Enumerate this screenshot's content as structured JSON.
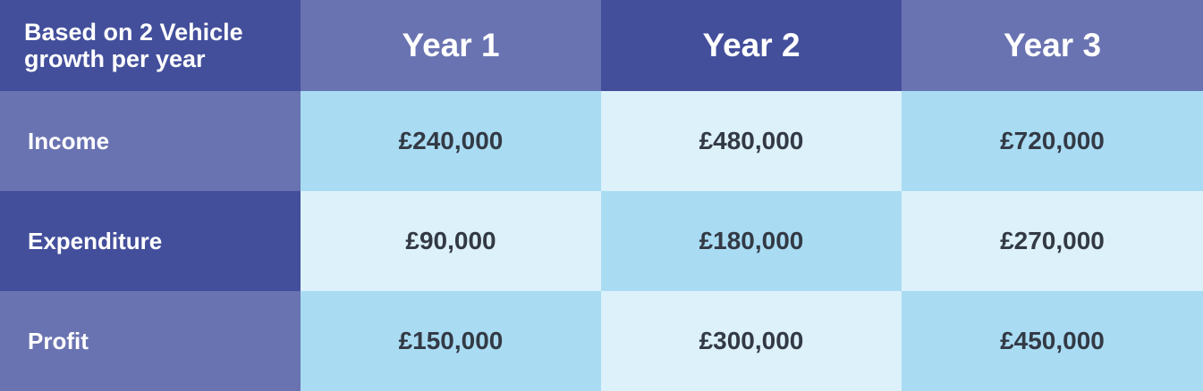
{
  "table": {
    "header": [
      "Based on 2 Vehicle\ngrowth per year",
      "Year 1",
      "Year 2",
      "Year 3"
    ],
    "rows": [
      [
        "Income",
        "£240,000",
        "£480,000",
        "£720,000"
      ],
      [
        "Expenditure",
        "£90,000",
        "£180,000",
        "£270,000"
      ],
      [
        "Profit",
        "£150,000",
        "£300,000",
        "£450,000"
      ]
    ]
  }
}
